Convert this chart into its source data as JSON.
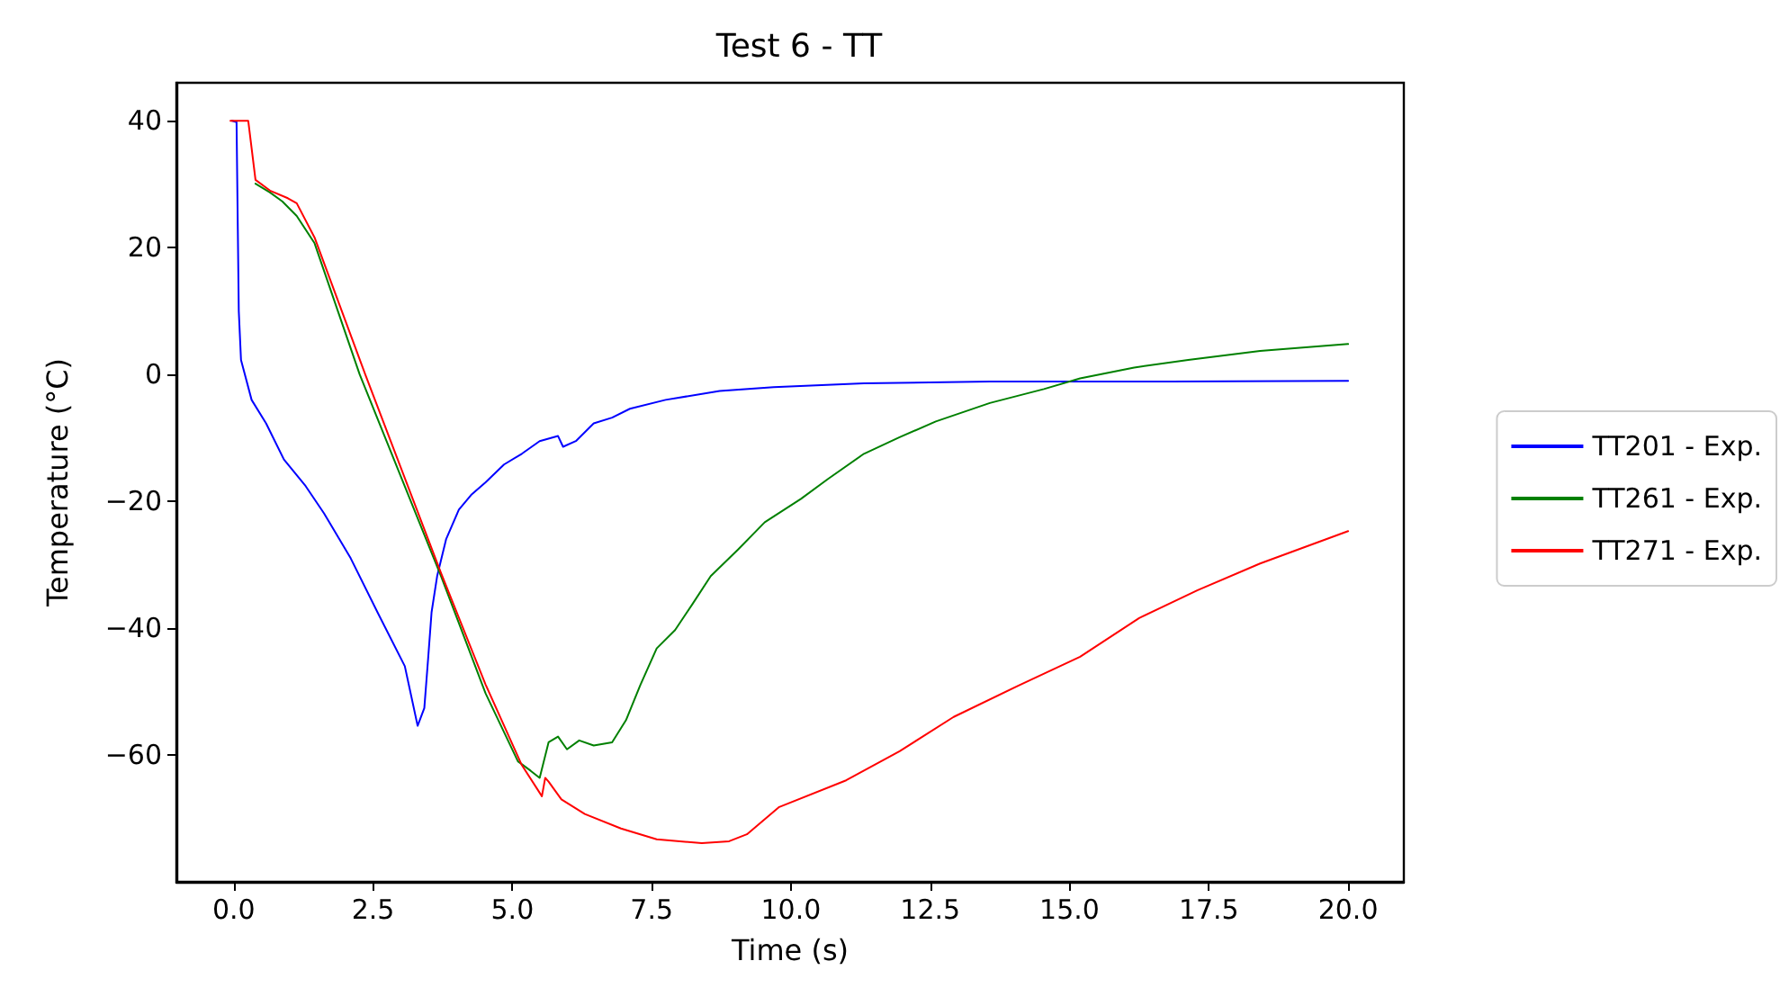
{
  "chart_data": {
    "type": "line",
    "title": "Test 6 - TT",
    "xlabel": "Time (s)",
    "ylabel": "Temperature (°C)",
    "xlim": [
      -1.03,
      21.0
    ],
    "ylim": [
      -80,
      46
    ],
    "xticks": [
      {
        "value": 0,
        "label": "0.0"
      },
      {
        "value": 2.5,
        "label": "2.5"
      },
      {
        "value": 5,
        "label": "5.0"
      },
      {
        "value": 7.5,
        "label": "7.5"
      },
      {
        "value": 10,
        "label": "10.0"
      },
      {
        "value": 12.5,
        "label": "12.5"
      },
      {
        "value": 15,
        "label": "15.0"
      },
      {
        "value": 17.5,
        "label": "17.5"
      },
      {
        "value": 20,
        "label": "20.0"
      }
    ],
    "yticks": [
      {
        "value": -60,
        "label": "−60"
      },
      {
        "value": -40,
        "label": "−40"
      },
      {
        "value": -20,
        "label": "−20"
      },
      0,
      20,
      40
    ],
    "grid": false,
    "legend": "right",
    "marker": "none",
    "line_style": "solid",
    "series": [
      {
        "name": "TT201 - Exp.",
        "color": "#0000ff",
        "x": [
          -0.03,
          0.05,
          0.09,
          0.13,
          0.32,
          0.58,
          0.9,
          1.29,
          1.62,
          2.1,
          2.58,
          3.07,
          3.3,
          3.42,
          3.49,
          3.55,
          3.65,
          3.81,
          4.04,
          4.26,
          4.52,
          4.85,
          5.17,
          5.49,
          5.82,
          5.91,
          6.14,
          6.46,
          6.79,
          7.11,
          7.75,
          8.72,
          9.69,
          11.31,
          13.57,
          16.8,
          20.0
        ],
        "values": [
          40,
          39.8,
          10,
          2.3,
          -4,
          -7.7,
          -13.4,
          -17.6,
          -21.9,
          -29,
          -37.5,
          -46,
          -55.4,
          -52.6,
          -44.6,
          -37.5,
          -31.8,
          -26,
          -21.3,
          -19,
          -17,
          -14.2,
          -12.5,
          -10.5,
          -9.7,
          -11.4,
          -10.5,
          -7.7,
          -6.8,
          -5.4,
          -4,
          -2.6,
          -2,
          -1.4,
          -1.1,
          -1.1,
          -1.0
        ]
      },
      {
        "name": "TT261 - Exp.",
        "color": "#008000",
        "x": [
          0.39,
          0.65,
          0.87,
          1.13,
          1.45,
          2.26,
          3.72,
          4.52,
          5.1,
          5.33,
          5.49,
          5.65,
          5.82,
          5.98,
          6.2,
          6.46,
          6.79,
          7.04,
          7.3,
          7.59,
          7.92,
          8.24,
          8.56,
          9.05,
          9.53,
          10.18,
          10.66,
          11.31,
          11.95,
          12.6,
          13.57,
          14.54,
          15.19,
          16.16,
          17.13,
          18.42,
          20.0
        ],
        "values": [
          30.1,
          28.7,
          27.3,
          25,
          20.7,
          0,
          -31.8,
          -50.3,
          -61,
          -62.5,
          -63.6,
          -58,
          -57.1,
          -59.1,
          -57.7,
          -58.5,
          -58,
          -54.5,
          -48.9,
          -43.2,
          -40.3,
          -36.1,
          -31.8,
          -27.6,
          -23.3,
          -19.6,
          -16.5,
          -12.5,
          -9.9,
          -7.4,
          -4.5,
          -2.3,
          -0.6,
          1.1,
          2.3,
          3.7,
          4.8
        ]
      },
      {
        "name": "TT271 - Exp.",
        "color": "#ff0000",
        "x": [
          -0.06,
          0.26,
          0.39,
          0.65,
          0.97,
          1.13,
          1.45,
          2.36,
          3.72,
          4.52,
          5.17,
          5.53,
          5.59,
          5.65,
          5.88,
          6.3,
          6.95,
          7.59,
          8.4,
          8.89,
          9.21,
          9.79,
          10.99,
          11.95,
          12.92,
          14.12,
          15.19,
          16.25,
          17.3,
          18.42,
          20.0
        ],
        "values": [
          40,
          40,
          30.7,
          29,
          27.8,
          27,
          21.6,
          0,
          -31.3,
          -48.9,
          -61.6,
          -66.5,
          -63.6,
          -64.2,
          -67,
          -69.3,
          -71.6,
          -73.3,
          -73.9,
          -73.6,
          -72.5,
          -68.2,
          -64,
          -59.4,
          -54,
          -48.9,
          -44.5,
          -38.4,
          -34,
          -29.8,
          -24.7
        ]
      }
    ]
  }
}
